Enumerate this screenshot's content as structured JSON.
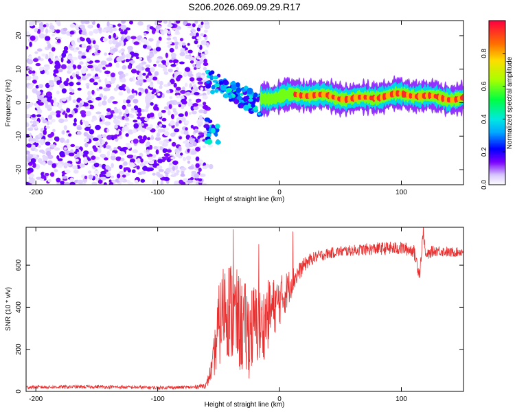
{
  "title": "S206.2026.069.09.29.R17",
  "colors": {
    "line": "#e83030",
    "axis": "#000000",
    "background": "#ffffff"
  },
  "chart_data": [
    {
      "id": "spectrogram",
      "type": "heatmap",
      "xlabel": "Height of straight line (km)",
      "ylabel": "Frequency (Hz)",
      "xlim": [
        -208,
        151
      ],
      "ylim": [
        -24.5,
        24.5
      ],
      "xticks": [
        -200,
        -100,
        0,
        100
      ],
      "yticks": [
        -20,
        -10,
        0,
        10,
        20
      ],
      "colorbar": {
        "label": "Normalized spectral amplitude",
        "range": [
          0,
          1
        ],
        "ticks": [
          "0.0",
          "0.2",
          "0.4",
          "0.6",
          "0.8"
        ],
        "tick_values": [
          0.0,
          0.2,
          0.4,
          0.6,
          0.8
        ],
        "stops": [
          {
            "v": 0.0,
            "c": "#ffffff"
          },
          {
            "v": 0.06,
            "c": "#d9c8ff"
          },
          {
            "v": 0.14,
            "c": "#7a00ff"
          },
          {
            "v": 0.22,
            "c": "#0000ff"
          },
          {
            "v": 0.32,
            "c": "#00a8ff"
          },
          {
            "v": 0.4,
            "c": "#00e8e0"
          },
          {
            "v": 0.52,
            "c": "#00ff40"
          },
          {
            "v": 0.64,
            "c": "#a8ff00"
          },
          {
            "v": 0.76,
            "c": "#ffdd00"
          },
          {
            "v": 0.86,
            "c": "#ff7000"
          },
          {
            "v": 1.0,
            "c": "#ff0040"
          }
        ]
      },
      "regions": [
        {
          "name": "noise",
          "x_range": [
            -208,
            -60
          ],
          "freq_range": [
            -24.5,
            24.5
          ],
          "amplitude_range": [
            0.02,
            0.16
          ]
        },
        {
          "name": "transition",
          "x_range": [
            -60,
            -15
          ],
          "freq_range": [
            -16,
            7
          ],
          "amplitude_range": [
            0.15,
            0.45
          ]
        },
        {
          "name": "carrier",
          "x_range": [
            -15,
            151
          ],
          "freq_range": [
            0.5,
            3.5
          ],
          "amplitude_range": [
            0.5,
            1.0
          ]
        }
      ]
    },
    {
      "id": "snr",
      "type": "line",
      "xlabel": "Height of straight line (km)",
      "ylabel": "SNR (10 * v/v)",
      "xlim": [
        -208,
        151
      ],
      "ylim": [
        0,
        780
      ],
      "xticks": [
        -200,
        -100,
        0,
        100
      ],
      "yticks": [
        0,
        200,
        400,
        600
      ],
      "series": [
        {
          "name": "SNR",
          "x": [
            -208,
            -150,
            -100,
            -70,
            -60,
            -55,
            -50,
            -45,
            -40,
            -35,
            -30,
            -25,
            -20,
            -15,
            -10,
            -5,
            0,
            5,
            10,
            15,
            20,
            25,
            30,
            40,
            50,
            60,
            70,
            80,
            90,
            100,
            110,
            115,
            118,
            120,
            125,
            130,
            140,
            151
          ],
          "y": [
            20,
            22,
            18,
            20,
            30,
            120,
            300,
            420,
            380,
            340,
            300,
            280,
            320,
            300,
            360,
            400,
            430,
            470,
            520,
            560,
            600,
            625,
            640,
            655,
            665,
            670,
            675,
            678,
            680,
            680,
            670,
            560,
            760,
            640,
            665,
            670,
            660,
            665
          ],
          "jitter": [
            8,
            8,
            8,
            8,
            15,
            60,
            200,
            230,
            250,
            240,
            230,
            220,
            200,
            180,
            170,
            140,
            120,
            100,
            70,
            45,
            35,
            30,
            28,
            26,
            26,
            26,
            28,
            30,
            32,
            32,
            32,
            40,
            20,
            26,
            26,
            26,
            24,
            22
          ],
          "peaks": [
            {
              "x": -38,
              "y": 770
            },
            {
              "x": -17,
              "y": 700
            },
            {
              "x": 11,
              "y": 760
            },
            {
              "x": 118,
              "y": 780
            }
          ]
        }
      ]
    }
  ]
}
